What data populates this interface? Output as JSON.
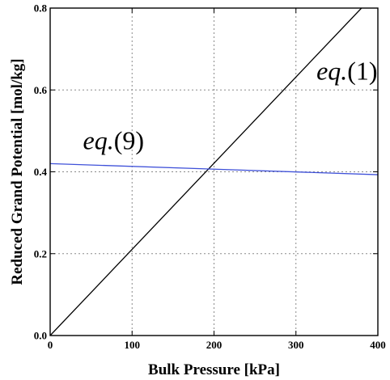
{
  "chart_data": {
    "type": "line",
    "title": "",
    "xlabel": "Bulk Pressure [kPa]",
    "ylabel": "Reduced Grand Potential [mol/kg]",
    "xlim": [
      0,
      400
    ],
    "ylim": [
      0.0,
      0.8
    ],
    "xticks": [
      0,
      100,
      200,
      300,
      400
    ],
    "xtick_labels": [
      "0",
      "100",
      "200",
      "300",
      "400"
    ],
    "yticks": [
      0.0,
      0.2,
      0.4,
      0.6,
      0.8
    ],
    "ytick_labels": [
      "0.0",
      "0.2",
      "0.4",
      "0.6",
      "0.8"
    ],
    "grid": true,
    "series": [
      {
        "color": "#000000",
        "x": [
          0,
          380
        ],
        "y": [
          0.0,
          0.8
        ]
      },
      {
        "color": "#3f51d9",
        "x": [
          0,
          400
        ],
        "y": [
          0.42,
          0.393
        ]
      }
    ],
    "annotations": [
      {
        "italic": "eq.",
        "paren": "(1)",
        "x": 325,
        "y": 0.625
      },
      {
        "italic": "eq.",
        "paren": "(9)",
        "x": 40,
        "y": 0.455
      }
    ]
  }
}
